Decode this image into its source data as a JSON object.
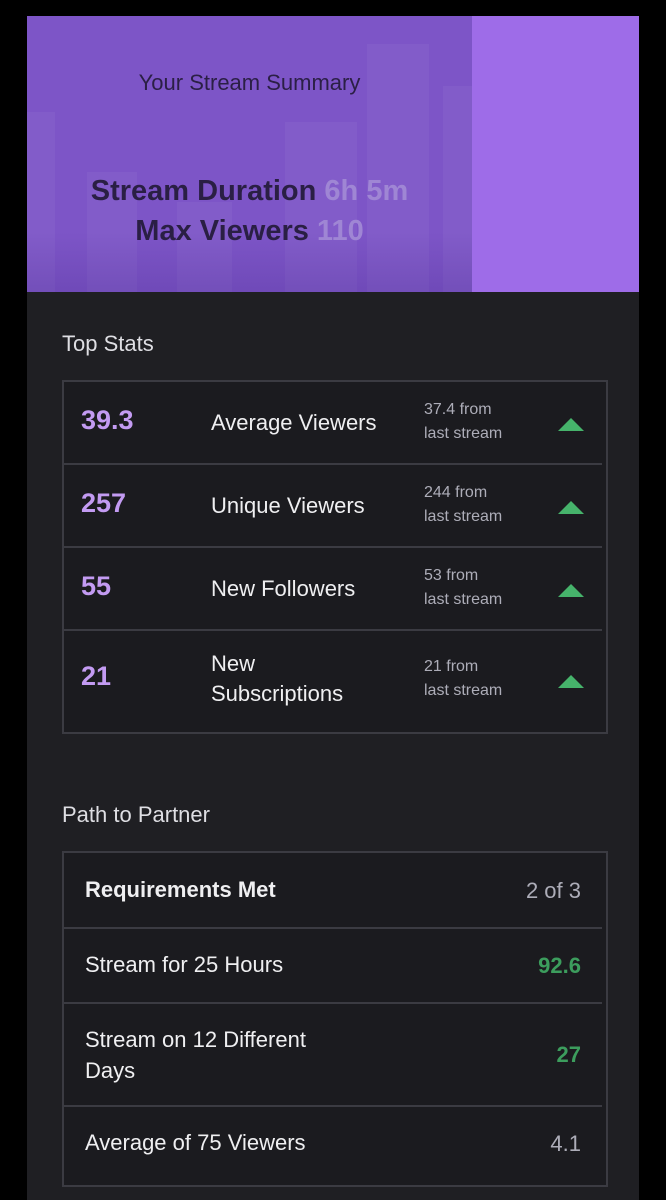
{
  "summary": {
    "title": "Your Stream Summary",
    "duration_label": "Stream Duration",
    "duration_value": "6h 5m",
    "viewers_label": "Max Viewers",
    "viewers_value": "110"
  },
  "colors": {
    "accent_purple": "#c39bf2",
    "hero_purple": "#7d55c7",
    "hero_side": "#9e6ce8",
    "up_arrow_green": "#46b36b",
    "met_green": "#3c9d5d"
  },
  "top_stats": {
    "title": "Top Stats",
    "rows": [
      {
        "value": "39.3",
        "label": "Average Viewers",
        "compare_line1": "37.4 from",
        "compare_line2": "last stream",
        "trend_icon": "arrow-up-icon"
      },
      {
        "value": "257",
        "label": "Unique Viewers",
        "compare_line1": "244 from",
        "compare_line2": "last stream",
        "trend_icon": "arrow-up-icon"
      },
      {
        "value": "55",
        "label": "New Followers",
        "compare_line1": "53 from",
        "compare_line2": "last stream",
        "trend_icon": "arrow-up-icon"
      },
      {
        "value": "21",
        "label_line1": "New",
        "label_line2": "Subscriptions",
        "compare_line1": "21 from",
        "compare_line2": "last stream",
        "trend_icon": "arrow-up-icon"
      }
    ]
  },
  "partner": {
    "title": "Path to Partner",
    "header_label": "Requirements Met",
    "header_value": "2 of 3",
    "rows": [
      {
        "label": "Stream for 25 Hours",
        "value": "92.6",
        "met": true
      },
      {
        "label_line1": "Stream on 12 Different",
        "label_line2": "Days",
        "value": "27",
        "met": true
      },
      {
        "label": "Average of 75 Viewers",
        "value": "4.1",
        "met": false
      }
    ]
  }
}
